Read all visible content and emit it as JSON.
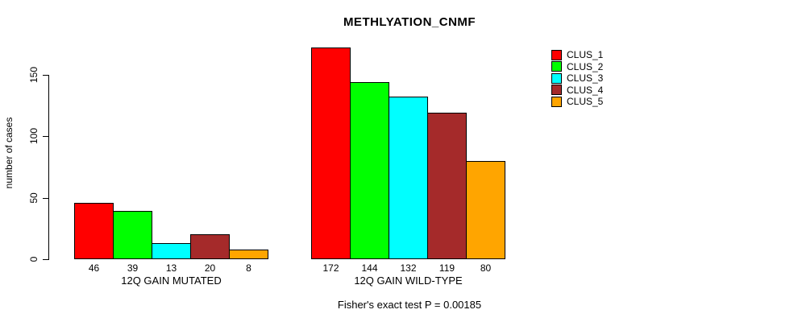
{
  "chart_data": {
    "type": "bar",
    "title": "METHLYATION_CNMF",
    "ylabel": "number of cases",
    "yticks": [
      0,
      50,
      100,
      150
    ],
    "ylim": [
      0,
      175
    ],
    "grid": false,
    "legend_position": "right",
    "series": [
      {
        "name": "CLUS_1",
        "color": "#ff0000"
      },
      {
        "name": "CLUS_2",
        "color": "#00ff00"
      },
      {
        "name": "CLUS_3",
        "color": "#00ffff"
      },
      {
        "name": "CLUS_4",
        "color": "#a52a2a"
      },
      {
        "name": "CLUS_5",
        "color": "#ffa500"
      }
    ],
    "groups": [
      {
        "label": "12Q GAIN MUTATED",
        "values": [
          46,
          39,
          13,
          20,
          8
        ]
      },
      {
        "label": "12Q GAIN WILD-TYPE",
        "values": [
          172,
          144,
          132,
          119,
          80
        ]
      }
    ],
    "caption": "Fisher's exact test P = 0.00185"
  }
}
